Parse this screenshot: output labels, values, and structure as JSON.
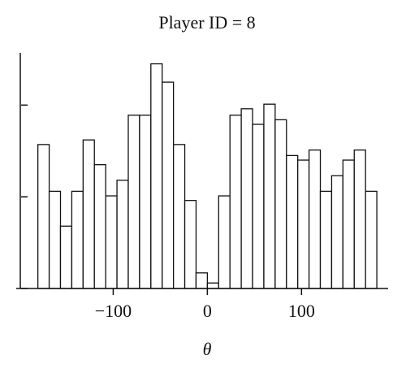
{
  "chart_data": {
    "type": "histogram",
    "title": "Player ID = 8",
    "x_label": "θ",
    "bins": [
      -180,
      -168,
      -156,
      -144,
      -132,
      -120,
      -108,
      -96,
      -84,
      -72,
      -60,
      -48,
      -36,
      -24,
      -12,
      0,
      12,
      24,
      36,
      48,
      60,
      72,
      84,
      96,
      108,
      120,
      132,
      144,
      156,
      168,
      180
    ],
    "counts": [
      15.7,
      10.6,
      6.8,
      10.6,
      16.2,
      13.5,
      10.1,
      11.8,
      18.9,
      18.9,
      24.5,
      22.5,
      15.7,
      9.6,
      1.7,
      0.6,
      10.1,
      18.9,
      19.6,
      17.9,
      20.1,
      18.4,
      14.5,
      14.0,
      15.1,
      10.6,
      12.3,
      14.0,
      15.1,
      10.6
    ],
    "color": "#ffffff",
    "xlim": [
      -203,
      192
    ],
    "xticks": [
      {
        "value": -100,
        "label": "−100"
      },
      0,
      100
    ],
    "ylim": [
      0,
      25.7
    ],
    "yticks": [
      0,
      10,
      20
    ]
  }
}
